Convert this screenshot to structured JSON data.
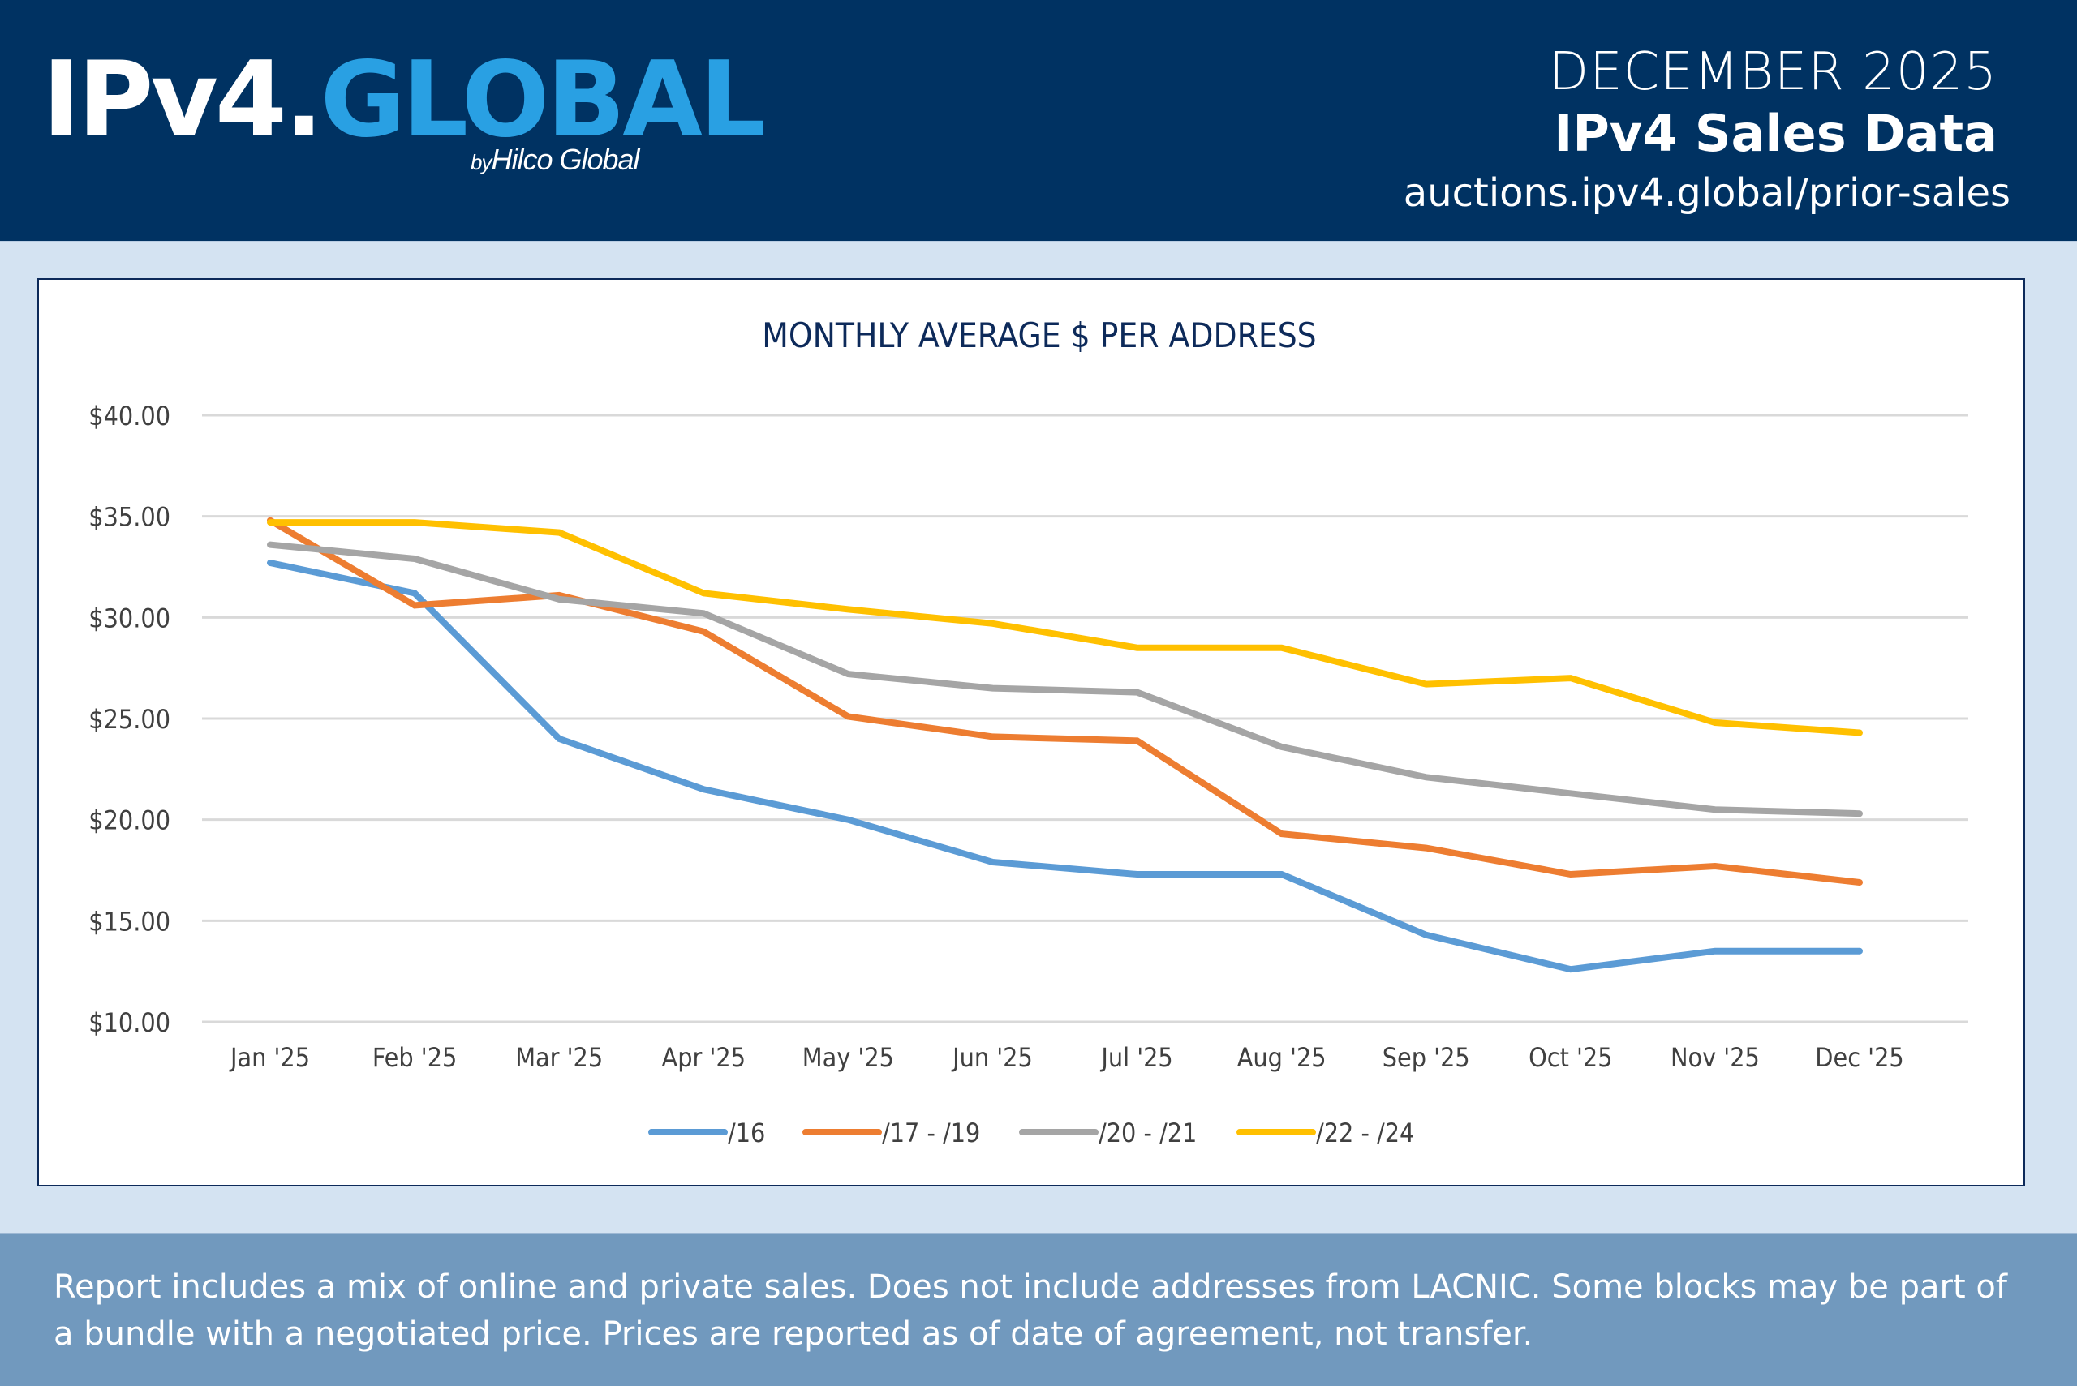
{
  "header": {
    "logo_part1": "IPv4.",
    "logo_part2": "GLOBAL",
    "byline_by": "by",
    "byline_name": "Hilco Global",
    "month": "DECEMBER 2025",
    "title": "IPv4 Sales Data",
    "url": "auctions.ipv4.global/prior-sales"
  },
  "footer": {
    "note": "Report includes a mix of online and private sales. Does not include addresses from LACNIC. Some blocks may be part of a bundle with a negotiated price. Prices are reported as of date of agreement, not transfer."
  },
  "colors": {
    "header_bg": "#003262",
    "brand_blue": "#29A0E3",
    "page_bg": "#D4E3F2",
    "footer_bg": "#7199BE",
    "title_navy": "#0d2a5a"
  },
  "chart_data": {
    "type": "line",
    "title": "MONTHLY AVERAGE $ PER ADDRESS",
    "xlabel": "",
    "ylabel": "",
    "categories": [
      "Jan '25",
      "Feb '25",
      "Mar '25",
      "Apr '25",
      "May '25",
      "Jun '25",
      "Jul '25",
      "Aug '25",
      "Sep '25",
      "Oct '25",
      "Nov '25",
      "Dec '25"
    ],
    "ylim": [
      10,
      40
    ],
    "yticks": [
      10,
      15,
      20,
      25,
      30,
      35,
      40
    ],
    "ytick_labels": [
      "$10.00",
      "$15.00",
      "$20.00",
      "$25.00",
      "$30.00",
      "$35.00",
      "$40.00"
    ],
    "grid": true,
    "legend_position": "bottom",
    "series": [
      {
        "name": "/16",
        "color": "#5B9BD5",
        "values": [
          32.7,
          31.2,
          24.0,
          21.5,
          20.0,
          17.9,
          17.3,
          17.3,
          14.3,
          12.6,
          13.5,
          13.5
        ]
      },
      {
        "name": "/17 - /19",
        "color": "#ED7D31",
        "values": [
          34.8,
          30.6,
          31.1,
          29.3,
          25.1,
          24.1,
          23.9,
          19.3,
          18.6,
          17.3,
          17.7,
          16.9
        ]
      },
      {
        "name": "/20 - /21",
        "color": "#A5A5A5",
        "values": [
          33.6,
          32.9,
          30.9,
          30.2,
          27.2,
          26.5,
          26.3,
          23.6,
          22.1,
          21.3,
          20.5,
          20.3
        ]
      },
      {
        "name": "/22 - /24",
        "color": "#FFC000",
        "values": [
          34.7,
          34.7,
          34.2,
          31.2,
          30.4,
          29.7,
          28.5,
          28.5,
          26.7,
          27.0,
          24.8,
          24.3
        ]
      }
    ]
  }
}
